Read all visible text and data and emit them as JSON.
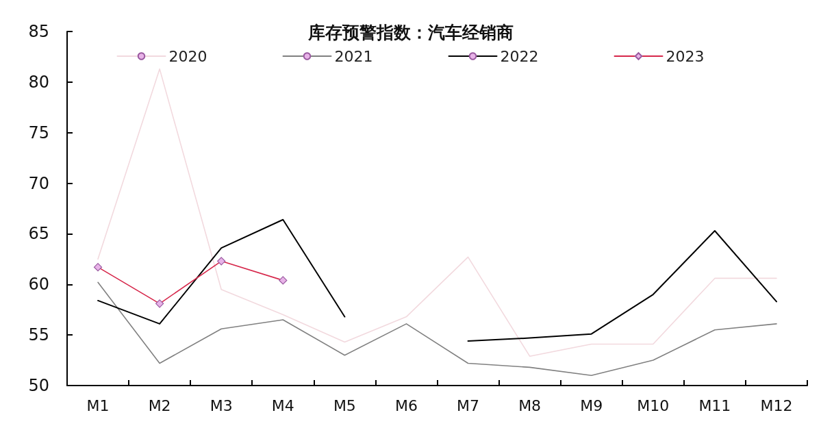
{
  "chart_data": {
    "type": "line",
    "title": "库存预警指数：汽车经销商",
    "categories": [
      "M1",
      "M2",
      "M3",
      "M4",
      "M5",
      "M6",
      "M7",
      "M8",
      "M9",
      "M10",
      "M11",
      "M12"
    ],
    "series": [
      {
        "name": "2020",
        "color": "#f2d9de",
        "marker": "none",
        "values": [
          62.5,
          81.3,
          59.5,
          57.0,
          54.3,
          56.8,
          62.7,
          52.9,
          54.1,
          54.1,
          60.6,
          60.6
        ]
      },
      {
        "name": "2021",
        "color": "#808080",
        "marker": "none",
        "values": [
          60.2,
          52.2,
          55.6,
          56.5,
          53.0,
          56.1,
          52.2,
          51.8,
          51.0,
          52.5,
          55.5,
          56.1
        ]
      },
      {
        "name": "2022",
        "color": "#000000",
        "marker": "none",
        "values": [
          58.4,
          56.1,
          63.6,
          66.4,
          56.8,
          null,
          54.4,
          54.7,
          55.1,
          59.0,
          65.3,
          58.3
        ]
      },
      {
        "name": "2023",
        "color": "#d6264a",
        "marker": "diamond",
        "values": [
          61.7,
          58.1,
          62.3,
          60.4,
          null,
          null,
          null,
          null,
          null,
          null,
          null,
          null
        ]
      }
    ],
    "ylim": [
      50,
      85
    ],
    "yticks": [
      50,
      55,
      60,
      65,
      70,
      75,
      80,
      85
    ],
    "grid": false,
    "legend": "top",
    "line_style": "solid"
  }
}
